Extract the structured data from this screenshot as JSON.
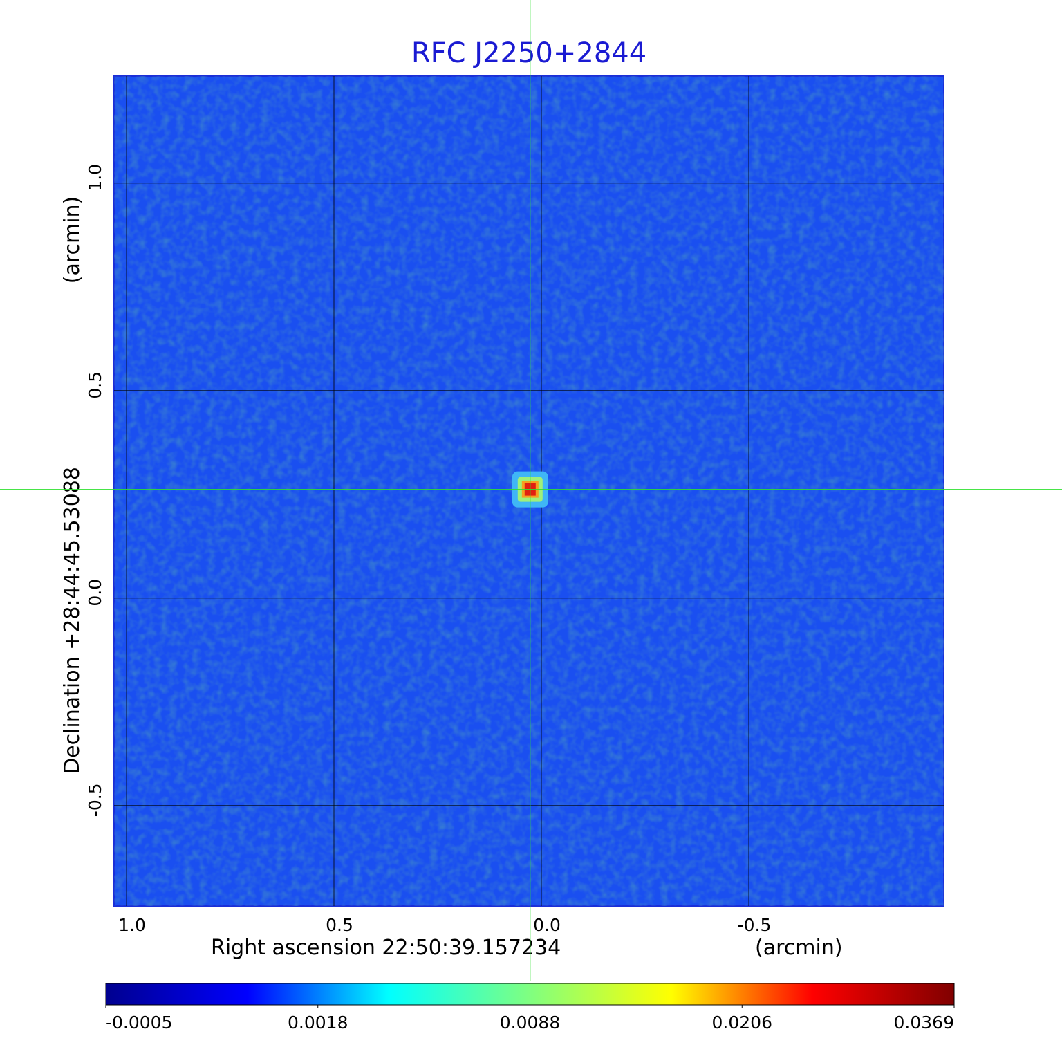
{
  "chart_data": {
    "type": "image",
    "title": "RFC J2250+2844",
    "x_label": "Right ascension  22:50:39.157234",
    "x_unit": "(arcmin)",
    "y_label": "Declination  +28:44:45.53088",
    "y_unit": "(arcmin)",
    "xlim": [
      1.03,
      -0.97
    ],
    "ylim": [
      -0.742,
      1.258
    ],
    "xticks": [
      {
        "value": 1,
        "label": "1.0"
      },
      0.5,
      {
        "value": 0,
        "label": "0.0"
      },
      -0.5
    ],
    "yticks": [
      -0.5,
      {
        "value": 0,
        "label": "0.0"
      },
      0.5,
      {
        "value": 1,
        "label": "1.0"
      }
    ],
    "grid": true,
    "source": {
      "x": 0.027,
      "y": 0.262,
      "value": 0.0369
    },
    "colorbar": {
      "ticks": [
        -0.0005,
        0.0018,
        0.0088,
        0.0206,
        0.0369
      ],
      "colormap": [
        "#00008f",
        "#0000ff",
        "#00ffff",
        "#80ff80",
        "#ffff00",
        "#ff0000",
        "#800000"
      ]
    }
  }
}
